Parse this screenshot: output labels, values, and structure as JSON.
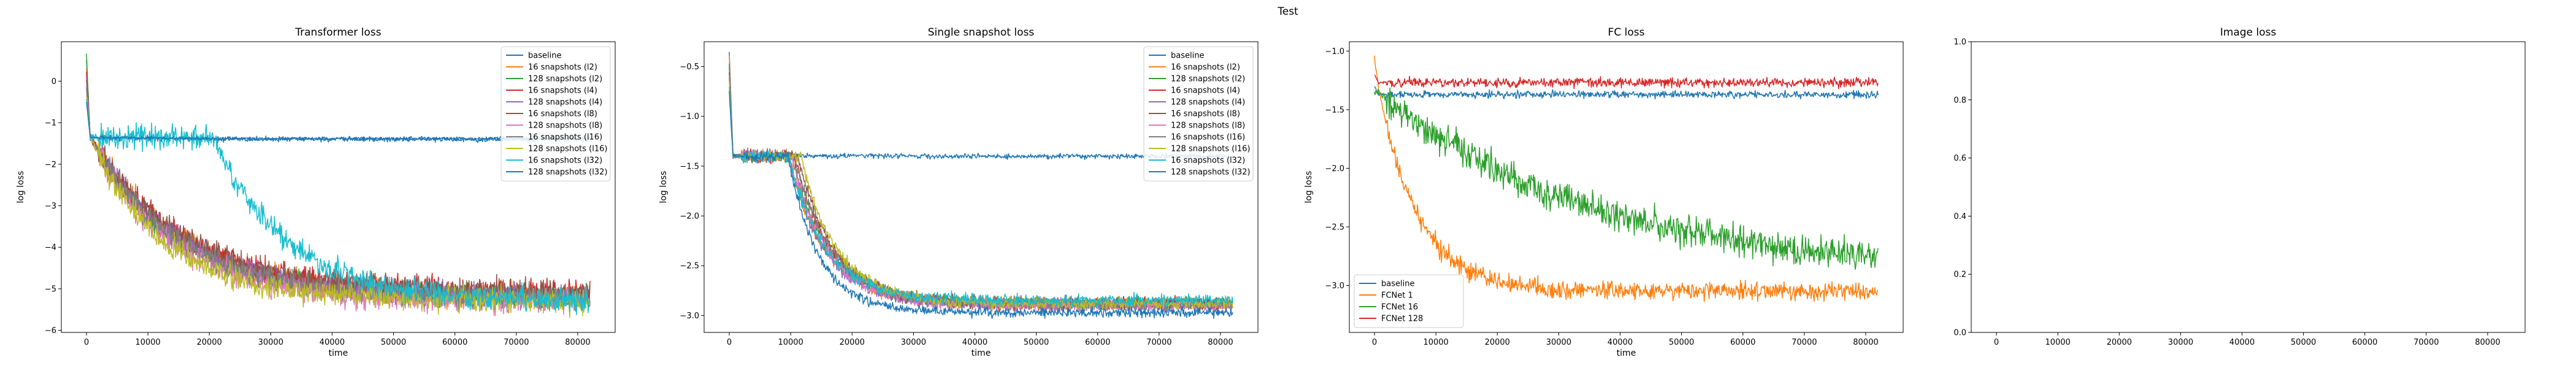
{
  "figure_title": "Test",
  "chart_data": [
    {
      "type": "line",
      "title": "Transformer loss",
      "xlabel": "time",
      "ylabel": "log loss",
      "xlim": [
        -4100,
        86100
      ],
      "ylim": [
        -6.05,
        0.95
      ],
      "xticks": [
        0,
        10000,
        20000,
        30000,
        40000,
        50000,
        60000,
        70000,
        80000
      ],
      "yticks": [
        -6,
        -5,
        -4,
        -3,
        -2,
        -1,
        0
      ],
      "legend_position": "top-right",
      "series": [
        {
          "name": "baseline",
          "color": "#1f77b4",
          "start": 0.5,
          "plateau": -1.35,
          "final": -1.4,
          "tau": 10000,
          "noise": 0.06
        },
        {
          "name": "16 snapshots (l2)",
          "color": "#ff7f0e",
          "start": 0.3,
          "plateau": -1.35,
          "final": -5.2,
          "tau": 15000,
          "noise": 0.28
        },
        {
          "name": "128 snapshots (l2)",
          "color": "#2ca02c",
          "start": 0.6,
          "plateau": -1.35,
          "final": -5.2,
          "tau": 14000,
          "noise": 0.28
        },
        {
          "name": "16 snapshots (l4)",
          "color": "#d62728",
          "start": 0.2,
          "plateau": -1.35,
          "final": -5.1,
          "tau": 15000,
          "noise": 0.3
        },
        {
          "name": "128 snapshots (l4)",
          "color": "#9467bd",
          "start": 0.1,
          "plateau": -1.35,
          "final": -5.2,
          "tau": 14500,
          "noise": 0.3
        },
        {
          "name": "16 snapshots (l8)",
          "color": "#8c564b",
          "start": 0.0,
          "plateau": -1.35,
          "final": -5.1,
          "tau": 15000,
          "noise": 0.28
        },
        {
          "name": "128 snapshots (l8)",
          "color": "#e377c2",
          "start": -0.1,
          "plateau": -1.35,
          "final": -5.3,
          "tau": 13000,
          "noise": 0.3
        },
        {
          "name": "16 snapshots (l16)",
          "color": "#7f7f7f",
          "start": -0.2,
          "plateau": -1.35,
          "final": -5.2,
          "tau": 14000,
          "noise": 0.28
        },
        {
          "name": "128 snapshots (l16)",
          "color": "#bcbd22",
          "start": -0.3,
          "plateau": -1.35,
          "final": -5.3,
          "tau": 12000,
          "noise": 0.3
        },
        {
          "name": "16 snapshots (l32)",
          "color": "#17becf",
          "start": -0.4,
          "plateau": -1.35,
          "final": -5.3,
          "tau": 12000,
          "noise": 0.3,
          "delay": 20000
        },
        {
          "name": "128 snapshots (l32)",
          "color": "#1f77b4",
          "start": -0.5,
          "plateau": -1.35,
          "final": -1.38,
          "tau": 10000,
          "noise": 0.04
        }
      ]
    },
    {
      "type": "line",
      "title": "Single snapshot loss",
      "xlabel": "time",
      "ylabel": "log loss",
      "xlim": [
        -4100,
        86100
      ],
      "ylim": [
        -3.17,
        -0.25
      ],
      "xticks": [
        0,
        10000,
        20000,
        30000,
        40000,
        50000,
        60000,
        70000,
        80000
      ],
      "yticks": [
        -3.0,
        -2.5,
        -2.0,
        -1.5,
        -1.0,
        -0.5
      ],
      "legend_position": "top-right",
      "series": [
        {
          "name": "baseline",
          "color": "#1f77b4",
          "start": -0.35,
          "plateau": -1.38,
          "final": -1.4,
          "tau": 10000,
          "noise": 0.025
        },
        {
          "name": "16 snapshots (l2)",
          "color": "#ff7f0e",
          "start": -0.4,
          "plateau": -1.4,
          "final": -2.88,
          "tau": 6000,
          "noise": 0.06,
          "delay": 9000
        },
        {
          "name": "128 snapshots (l2)",
          "color": "#2ca02c",
          "start": -0.45,
          "plateau": -1.4,
          "final": -2.88,
          "tau": 6000,
          "noise": 0.06,
          "delay": 9500
        },
        {
          "name": "16 snapshots (l4)",
          "color": "#d62728",
          "start": -0.5,
          "plateau": -1.4,
          "final": -2.88,
          "tau": 6000,
          "noise": 0.06,
          "delay": 10000
        },
        {
          "name": "128 snapshots (l4)",
          "color": "#9467bd",
          "start": -0.5,
          "plateau": -1.4,
          "final": -2.9,
          "tau": 6000,
          "noise": 0.06,
          "delay": 9000
        },
        {
          "name": "16 snapshots (l8)",
          "color": "#8c564b",
          "start": -0.55,
          "plateau": -1.4,
          "final": -2.88,
          "tau": 6000,
          "noise": 0.06,
          "delay": 10500
        },
        {
          "name": "128 snapshots (l8)",
          "color": "#e377c2",
          "start": -0.6,
          "plateau": -1.4,
          "final": -2.9,
          "tau": 6000,
          "noise": 0.06,
          "delay": 9500
        },
        {
          "name": "16 snapshots (l16)",
          "color": "#7f7f7f",
          "start": -0.6,
          "plateau": -1.4,
          "final": -2.88,
          "tau": 6000,
          "noise": 0.06,
          "delay": 10000
        },
        {
          "name": "128 snapshots (l16)",
          "color": "#bcbd22",
          "start": -0.65,
          "plateau": -1.4,
          "final": -2.88,
          "tau": 6000,
          "noise": 0.06,
          "delay": 11000
        },
        {
          "name": "16 snapshots (l32)",
          "color": "#17becf",
          "start": -0.7,
          "plateau": -1.4,
          "final": -2.85,
          "tau": 6000,
          "noise": 0.06,
          "delay": 9000
        },
        {
          "name": "128 snapshots (l32)",
          "color": "#1f77b4",
          "start": -0.75,
          "plateau": -1.4,
          "final": -2.97,
          "tau": 5000,
          "noise": 0.05,
          "delay": 9000
        }
      ]
    },
    {
      "type": "line",
      "title": "FC loss",
      "xlabel": "time",
      "ylabel": "log loss",
      "xlim": [
        -4100,
        86100
      ],
      "ylim": [
        -3.4,
        -0.92
      ],
      "xticks": [
        0,
        10000,
        20000,
        30000,
        40000,
        50000,
        60000,
        70000,
        80000
      ],
      "yticks": [
        -3.0,
        -2.5,
        -2.0,
        -1.5,
        -1.0
      ],
      "legend_position": "lower-left",
      "series": [
        {
          "name": "baseline",
          "color": "#1f77b4",
          "start": -1.3,
          "plateau": -1.37,
          "final": -1.37,
          "tau": 10000,
          "noise": 0.03
        },
        {
          "name": "FCNet 1",
          "color": "#ff7f0e",
          "start": -1.05,
          "plateau": -1.3,
          "final": -3.05,
          "tau": 6500,
          "noise": 0.08
        },
        {
          "name": "FCNet 16",
          "color": "#2ca02c",
          "start": -1.35,
          "plateau": -1.35,
          "final": -2.9,
          "tau": 35000,
          "noise": 0.13
        },
        {
          "name": "FCNet 128",
          "color": "#d62728",
          "start": -1.2,
          "plateau": -1.27,
          "final": -1.27,
          "tau": 10000,
          "noise": 0.04
        }
      ]
    },
    {
      "type": "line",
      "title": "Image loss",
      "xlabel": "",
      "ylabel": "",
      "xlim": [
        -4100,
        86100
      ],
      "ylim": [
        0.0,
        1.0
      ],
      "xticks": [
        0,
        10000,
        20000,
        30000,
        40000,
        50000,
        60000,
        70000,
        80000
      ],
      "yticks": [
        0.0,
        0.2,
        0.4,
        0.6,
        0.8,
        1.0
      ],
      "legend_position": "none",
      "series": []
    }
  ]
}
